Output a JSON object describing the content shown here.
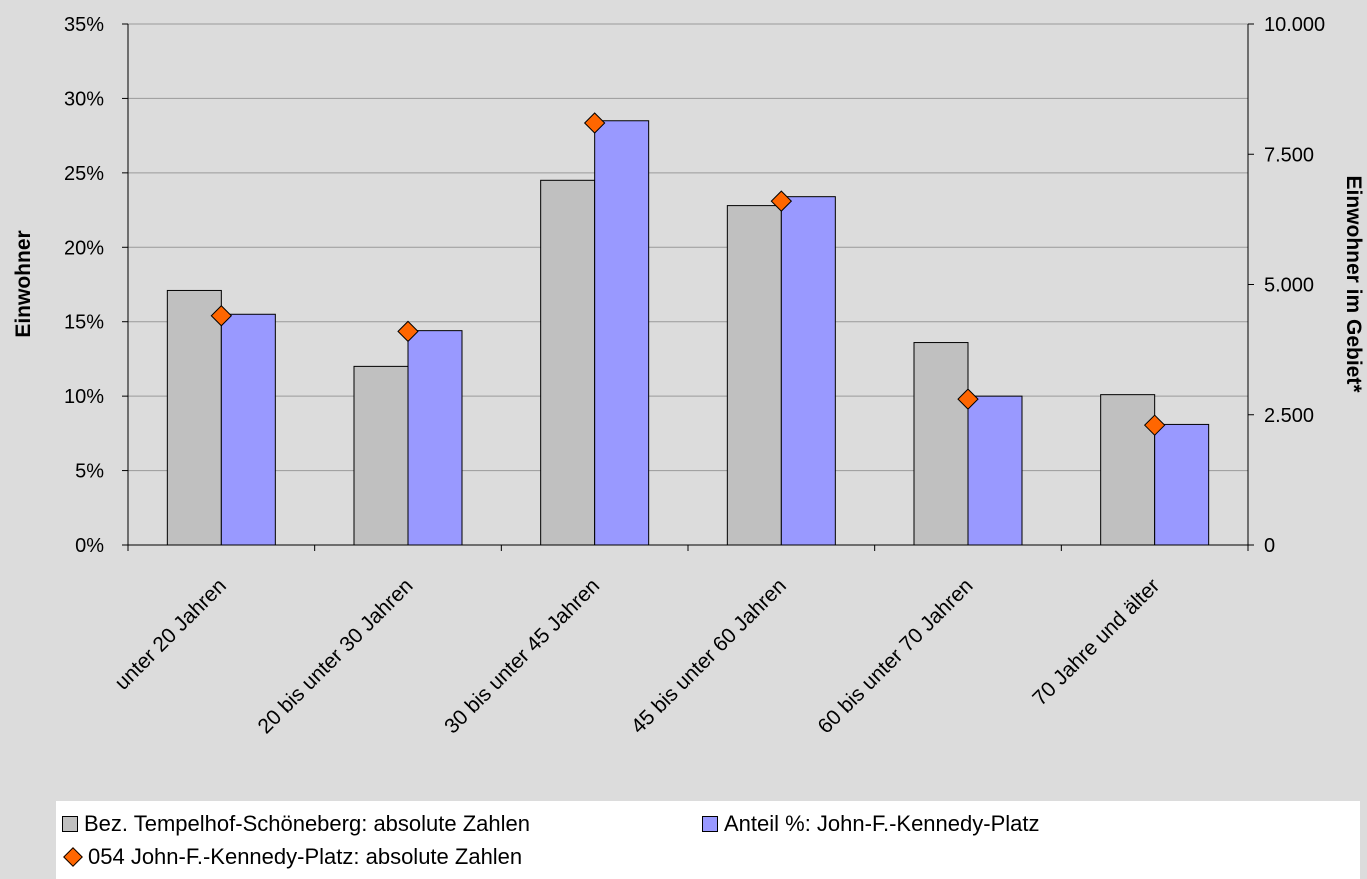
{
  "chart_data": {
    "type": "bar",
    "categories": [
      "unter 20 Jahren",
      "20 bis unter 30 Jahren",
      "30 bis unter 45 Jahren",
      "45 bis unter 60 Jahren",
      "60 bis unter 70 Jahren",
      "70 Jahre und älter"
    ],
    "ylabel": "Einwohner",
    "y2label": "Einwohner im Gebiet*",
    "ylim": [
      0,
      0.35
    ],
    "y2lim": [
      0,
      10000
    ],
    "yticks": [
      "0%",
      "5%",
      "10%",
      "15%",
      "20%",
      "25%",
      "30%",
      "35%"
    ],
    "y2ticks": [
      "0",
      "2.500",
      "5.000",
      "7.500",
      "10.000"
    ],
    "grid": true,
    "legend_position": "bottom",
    "series": [
      {
        "name": "Bez. Tempelhof-Schöneberg: absolute Zahlen",
        "type": "bar",
        "axis": "left",
        "color": "#c0c0c0",
        "values": [
          0.171,
          0.12,
          0.245,
          0.228,
          0.136,
          0.101
        ]
      },
      {
        "name": "Anteil %: John-F.-Kennedy-Platz",
        "type": "bar",
        "axis": "left",
        "color": "#9999ff",
        "values": [
          0.155,
          0.144,
          0.285,
          0.234,
          0.1,
          0.081
        ]
      },
      {
        "name": "054 John-F.-Kennedy-Platz: absolute Zahlen",
        "type": "marker",
        "axis": "right",
        "color": "#ff6600",
        "values": [
          4400,
          4100,
          8100,
          6600,
          2800,
          2300
        ]
      }
    ]
  }
}
